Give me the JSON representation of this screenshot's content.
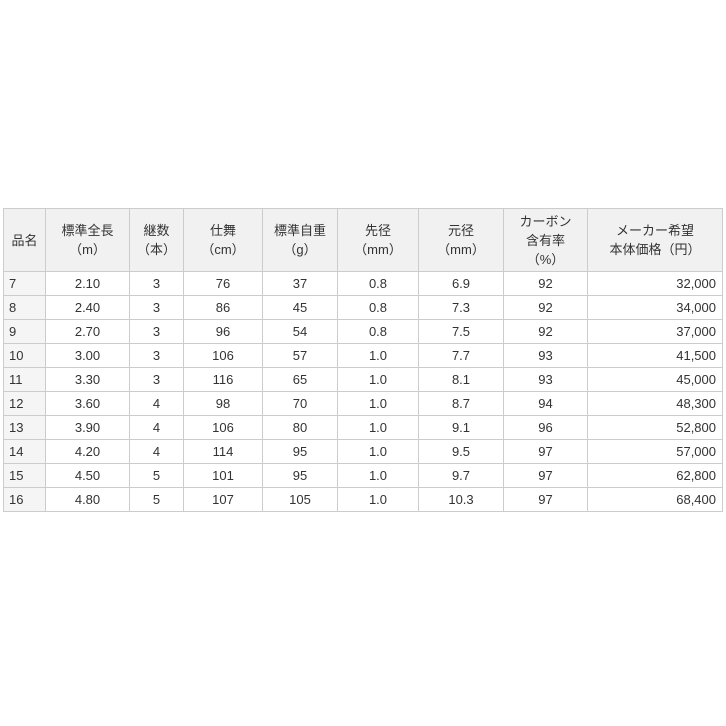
{
  "colors": {
    "page_bg": "#ffffff",
    "header_bg": "#f1f1f1",
    "name_col_bg": "#f5f5f5",
    "cell_bg": "#ffffff",
    "border": "#cccccc",
    "text": "#333333"
  },
  "table": {
    "columns": [
      {
        "id": "name",
        "label": "品名",
        "align": "left"
      },
      {
        "id": "length",
        "label": "標準全長\n（m）",
        "align": "center"
      },
      {
        "id": "sections",
        "label": "継数\n（本）",
        "align": "center"
      },
      {
        "id": "closed",
        "label": "仕舞\n（cm）",
        "align": "center"
      },
      {
        "id": "weight",
        "label": "標準自重\n（g）",
        "align": "center"
      },
      {
        "id": "tip-dia",
        "label": "先径\n（mm）",
        "align": "center"
      },
      {
        "id": "butt-dia",
        "label": "元径\n（mm）",
        "align": "center"
      },
      {
        "id": "carbon",
        "label": "カーボン\n含有率\n（%）",
        "align": "center"
      },
      {
        "id": "price",
        "label": "メーカー希望\n本体価格（円）",
        "align": "right"
      }
    ],
    "rows": [
      [
        "7",
        "2.10",
        "3",
        "76",
        "37",
        "0.8",
        "6.9",
        "92",
        "32,000"
      ],
      [
        "8",
        "2.40",
        "3",
        "86",
        "45",
        "0.8",
        "7.3",
        "92",
        "34,000"
      ],
      [
        "9",
        "2.70",
        "3",
        "96",
        "54",
        "0.8",
        "7.5",
        "92",
        "37,000"
      ],
      [
        "10",
        "3.00",
        "3",
        "106",
        "57",
        "1.0",
        "7.7",
        "93",
        "41,500"
      ],
      [
        "11",
        "3.30",
        "3",
        "116",
        "65",
        "1.0",
        "8.1",
        "93",
        "45,000"
      ],
      [
        "12",
        "3.60",
        "4",
        "98",
        "70",
        "1.0",
        "8.7",
        "94",
        "48,300"
      ],
      [
        "13",
        "3.90",
        "4",
        "106",
        "80",
        "1.0",
        "9.1",
        "96",
        "52,800"
      ],
      [
        "14",
        "4.20",
        "4",
        "114",
        "95",
        "1.0",
        "9.5",
        "97",
        "57,000"
      ],
      [
        "15",
        "4.50",
        "5",
        "101",
        "95",
        "1.0",
        "9.7",
        "97",
        "62,800"
      ],
      [
        "16",
        "4.80",
        "5",
        "107",
        "105",
        "1.0",
        "10.3",
        "97",
        "68,400"
      ]
    ]
  }
}
